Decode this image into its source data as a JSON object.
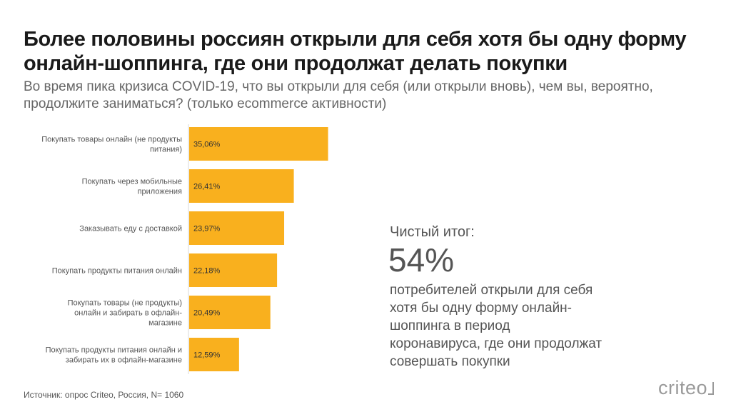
{
  "header": {
    "title": "Более половины россиян открыли для себя хотя бы одну форму онлайн-шоппинга, где они продолжат делать покупки",
    "subtitle": "Во время пика кризиса COVID-19, что вы открыли для себя (или открыли вновь), чем вы, вероятно, продолжите заниматься? (только ecommerce активности)"
  },
  "chart_data": {
    "type": "bar",
    "orientation": "horizontal",
    "categories": [
      [
        "Покупать товары онлайн (не продукты",
        "питания)"
      ],
      [
        "Покупать через мобильные",
        "приложения"
      ],
      [
        "Заказывать еду с доставкой"
      ],
      [
        "Покупать продукты питания онлайн"
      ],
      [
        "Покупать товары (не продукты)",
        "онлайн и забирать в офлайн-",
        "магазине"
      ],
      [
        "Покупать продукты питания онлайн и",
        "забирать их в офлайн-магазине"
      ]
    ],
    "values": [
      35.06,
      26.41,
      23.97,
      22.18,
      20.49,
      12.59
    ],
    "value_labels": [
      "35,06%",
      "26,41%",
      "23,97%",
      "22,18%",
      "20,49%",
      "12,59%"
    ],
    "bar_color": "#F9B01E",
    "grid": false
  },
  "summary": {
    "label": "Чистый итог:",
    "value": "54%",
    "text": "потребителей открыли для себя хотя бы одну форму онлайн-шоппинга в период коронавируса, где они продолжат совершать покупки"
  },
  "footer": {
    "source": "Источник: опрос Criteo, Россия, N= 1060",
    "logo": "criteo"
  }
}
